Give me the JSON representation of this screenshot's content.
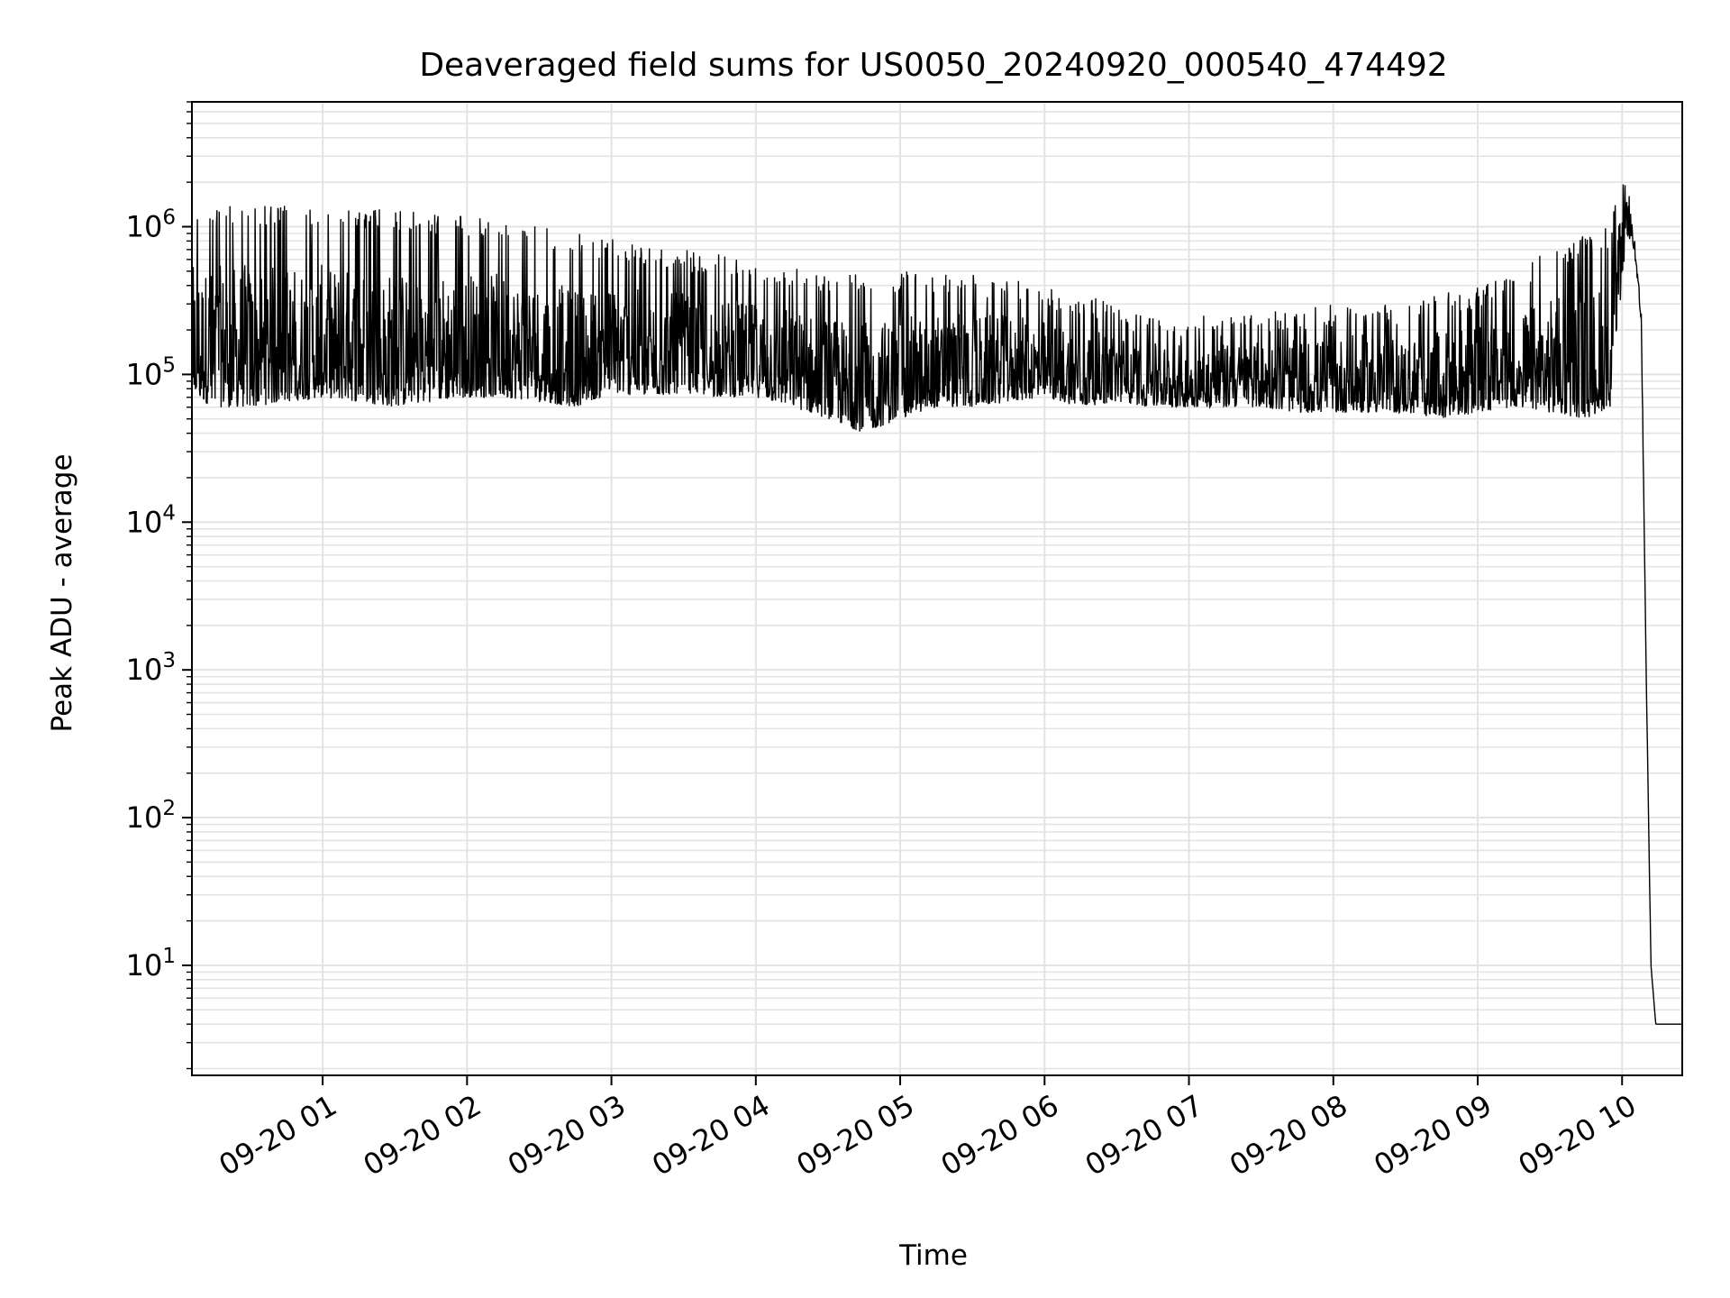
{
  "chart_data": {
    "type": "line",
    "title": "Deaveraged field sums for US0050_20240920_000540_474492",
    "xlabel": "Time",
    "ylabel": "Peak ADU - average",
    "y_scale": "log",
    "ylim": [
      1.8,
      7000000
    ],
    "xlim": [
      "2024-09-20 00:05:40",
      "2024-09-20 10:25:00"
    ],
    "grid": true,
    "line_color": "#000000",
    "x_ticks": [
      {
        "t": "2024-09-20 01:00",
        "label": "09-20 01"
      },
      {
        "t": "2024-09-20 02:00",
        "label": "09-20 02"
      },
      {
        "t": "2024-09-20 03:00",
        "label": "09-20 03"
      },
      {
        "t": "2024-09-20 04:00",
        "label": "09-20 04"
      },
      {
        "t": "2024-09-20 05:00",
        "label": "09-20 05"
      },
      {
        "t": "2024-09-20 06:00",
        "label": "09-20 06"
      },
      {
        "t": "2024-09-20 07:00",
        "label": "09-20 07"
      },
      {
        "t": "2024-09-20 08:00",
        "label": "09-20 08"
      },
      {
        "t": "2024-09-20 09:00",
        "label": "09-20 09"
      },
      {
        "t": "2024-09-20 10:00",
        "label": "09-20 10"
      }
    ],
    "y_ticks": [
      {
        "v": 10,
        "base": "10",
        "exp": "1"
      },
      {
        "v": 100,
        "base": "10",
        "exp": "2"
      },
      {
        "v": 1000,
        "base": "10",
        "exp": "3"
      },
      {
        "v": 10000,
        "base": "10",
        "exp": "4"
      },
      {
        "v": 100000,
        "base": "10",
        "exp": "5"
      },
      {
        "v": 1000000,
        "base": "10",
        "exp": "6"
      }
    ],
    "series": [
      {
        "values_description": "dense noisy trace",
        "x": [
          "2024-09-20 00:06",
          "2024-09-20 00:15",
          "2024-09-20 00:30",
          "2024-09-20 00:45",
          "2024-09-20 01:00",
          "2024-09-20 01:15",
          "2024-09-20 01:30",
          "2024-09-20 01:45",
          "2024-09-20 02:00",
          "2024-09-20 02:15",
          "2024-09-20 02:30",
          "2024-09-20 02:45",
          "2024-09-20 03:00",
          "2024-09-20 03:15",
          "2024-09-20 03:30",
          "2024-09-20 03:45",
          "2024-09-20 04:00",
          "2024-09-20 04:15",
          "2024-09-20 04:30",
          "2024-09-20 04:45",
          "2024-09-20 05:00",
          "2024-09-20 05:15",
          "2024-09-20 05:30",
          "2024-09-20 05:45",
          "2024-09-20 06:00",
          "2024-09-20 06:15",
          "2024-09-20 06:30",
          "2024-09-20 06:45",
          "2024-09-20 07:00",
          "2024-09-20 07:15",
          "2024-09-20 07:30",
          "2024-09-20 07:45",
          "2024-09-20 08:00",
          "2024-09-20 08:15",
          "2024-09-20 08:30",
          "2024-09-20 08:45",
          "2024-09-20 09:00",
          "2024-09-20 09:15",
          "2024-09-20 09:30",
          "2024-09-20 09:45",
          "2024-09-20 09:55",
          "2024-09-20 10:02",
          "2024-09-20 10:05",
          "2024-09-20 10:08",
          "2024-09-20 10:10",
          "2024-09-20 10:12",
          "2024-09-20 10:14",
          "2024-09-20 10:25"
        ],
        "upper": [
          1300000,
          1400000,
          1500000,
          1400000,
          1350000,
          1350000,
          1300000,
          1250000,
          1200000,
          1100000,
          1000000,
          900000,
          850000,
          750000,
          700000,
          650000,
          600000,
          550000,
          500000,
          480000,
          500000,
          500000,
          480000,
          450000,
          400000,
          350000,
          300000,
          250000,
          250000,
          250000,
          260000,
          280000,
          300000,
          320000,
          300000,
          350000,
          400000,
          500000,
          700000,
          900000,
          1000000,
          3500000,
          1000000,
          300000,
          1000,
          10,
          4,
          4
        ],
        "lower": [
          70000,
          60000,
          60000,
          65000,
          70000,
          65000,
          60000,
          65000,
          70000,
          70000,
          65000,
          60000,
          75000,
          70000,
          75000,
          70000,
          70000,
          60000,
          50000,
          40000,
          50000,
          60000,
          60000,
          65000,
          70000,
          60000,
          65000,
          60000,
          60000,
          60000,
          60000,
          55000,
          55000,
          55000,
          55000,
          50000,
          55000,
          60000,
          55000,
          50000,
          60000,
          900000,
          700000,
          200000,
          1000,
          10,
          4,
          4
        ]
      }
    ]
  }
}
